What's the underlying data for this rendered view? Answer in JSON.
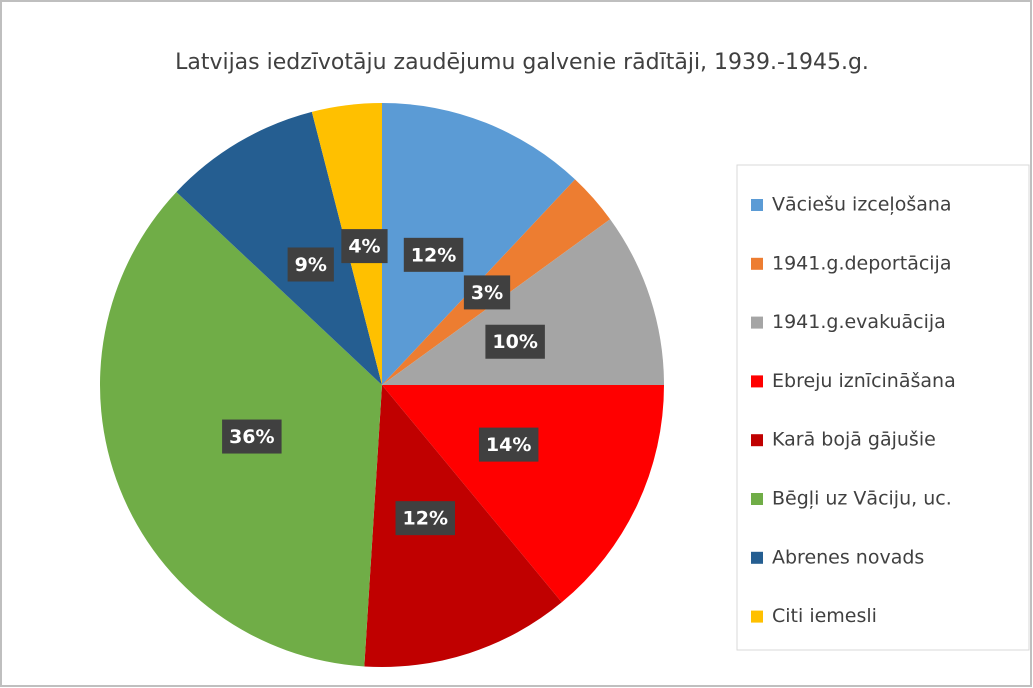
{
  "chart_data": {
    "type": "pie",
    "title": "Latvijas iedzīvotāju zaudējumu galvenie rādītāji, 1939.-1945.g.",
    "categories": [
      "Vāciešu izceļošana",
      "1941.g.deportācija",
      "1941.g.evakuācija",
      "Ebreju iznīcināšana",
      "Karā bojā gājušie",
      "Bēgļi uz Vāciju, uc.",
      "Abrenes novads",
      "Citi iemesli"
    ],
    "values": [
      12,
      3,
      10,
      14,
      12,
      36,
      9,
      4
    ],
    "value_labels": [
      "12%",
      "3%",
      "10%",
      "14%",
      "12%",
      "36%",
      "9%",
      "4%"
    ],
    "colors": [
      "#5b9bd5",
      "#ed7d31",
      "#a5a5a5",
      "#ff0000",
      "#c00000",
      "#70ad47",
      "#255e91",
      "#ffc000"
    ],
    "legend": "right"
  }
}
